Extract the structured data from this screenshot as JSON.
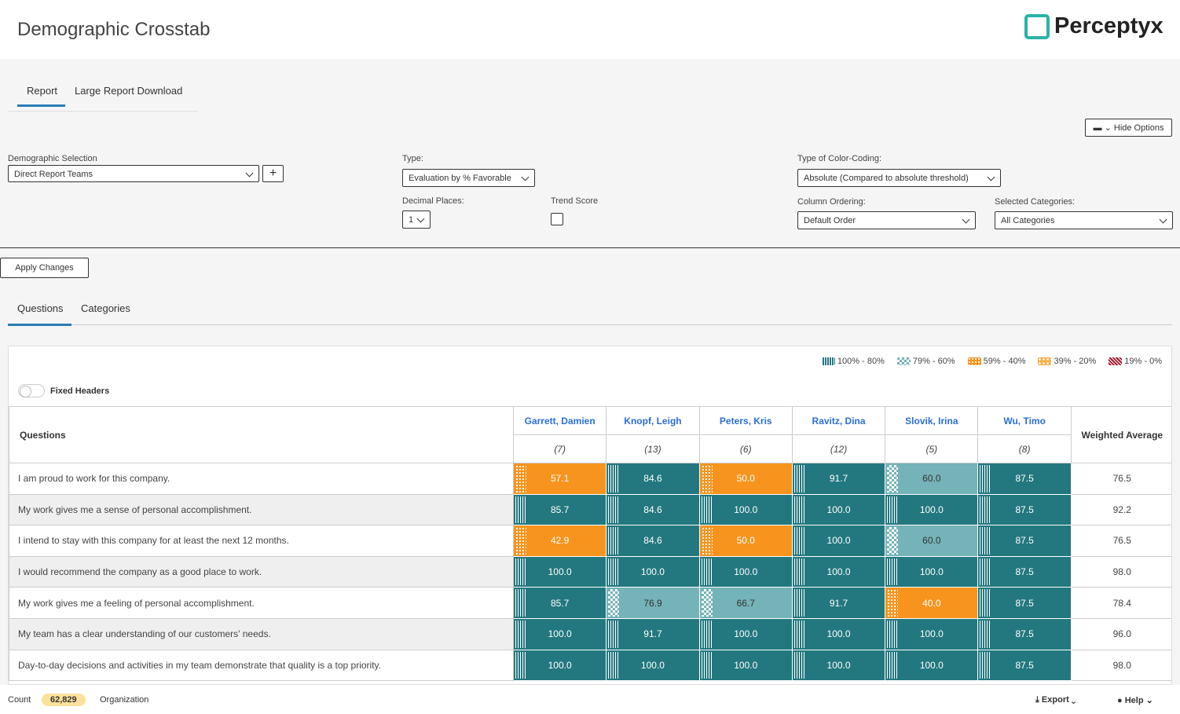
{
  "header": {
    "title": "Demographic Crosstab",
    "logo": "Perceptyx"
  },
  "tabs": [
    "Report",
    "Large Report Download"
  ],
  "hide_options": "Hide Options",
  "fields": {
    "demographic_selection": {
      "label": "Demographic Selection",
      "value": "Direct Report Teams"
    },
    "type": {
      "label": "Type:",
      "value": "Evaluation by % Favorable"
    },
    "decimal_places": {
      "label": "Decimal Places:",
      "value": "1"
    },
    "trend_score": {
      "label": "Trend Score"
    },
    "color_coding": {
      "label": "Type of Color-Coding:",
      "value": "Absolute (Compared to absolute threshold)"
    },
    "column_ordering": {
      "label": "Column Ordering:",
      "value": "Default Order"
    },
    "selected_categories": {
      "label": "Selected Categories:",
      "value": "All Categories"
    }
  },
  "apply": "Apply Changes",
  "view_tabs": [
    "Questions",
    "Categories"
  ],
  "legend": [
    {
      "label": "100% - 80%",
      "color": "#23787f"
    },
    {
      "label": "79% - 60%",
      "color": "#74b3b7"
    },
    {
      "label": "59% - 40%",
      "color": "#f7941d"
    },
    {
      "label": "39% - 20%",
      "color": "#f9b04a"
    },
    {
      "label": "19% - 0%",
      "color": "#a3182e"
    }
  ],
  "toggle": "Fixed Headers",
  "table": {
    "questions_header": "Questions",
    "weighted_header": "Weighted Average",
    "columns": [
      {
        "name": "Garrett, Damien",
        "count": "(7)"
      },
      {
        "name": "Knopf, Leigh",
        "count": "(13)"
      },
      {
        "name": "Peters, Kris",
        "count": "(6)"
      },
      {
        "name": "Ravitz, Dina",
        "count": "(12)"
      },
      {
        "name": "Slovik, Irina",
        "count": "(5)"
      },
      {
        "name": "Wu, Timo",
        "count": "(8)"
      }
    ],
    "rows": [
      {
        "question": "I am proud to work for this company.",
        "cells": [
          "57.1",
          "84.6",
          "50.0",
          "91.7",
          "60.0",
          "87.5"
        ],
        "average": "76.5"
      },
      {
        "question": "My work gives me a sense of personal accomplishment.",
        "cells": [
          "85.7",
          "84.6",
          "100.0",
          "100.0",
          "100.0",
          "87.5"
        ],
        "average": "92.2"
      },
      {
        "question": "I intend to stay with this company for at least the next 12 months.",
        "cells": [
          "42.9",
          "84.6",
          "50.0",
          "100.0",
          "60.0",
          "87.5"
        ],
        "average": "76.5"
      },
      {
        "question": "I would recommend the company as a good place to work.",
        "cells": [
          "100.0",
          "100.0",
          "100.0",
          "100.0",
          "100.0",
          "87.5"
        ],
        "average": "98.0"
      },
      {
        "question": "My work gives me a feeling of personal accomplishment.",
        "cells": [
          "85.7",
          "76.9",
          "66.7",
          "91.7",
          "40.0",
          "87.5"
        ],
        "average": "78.4"
      },
      {
        "question": "My team has a clear understanding of our customers' needs.",
        "cells": [
          "100.0",
          "91.7",
          "100.0",
          "100.0",
          "100.0",
          "87.5"
        ],
        "average": "96.0"
      },
      {
        "question": "Day-to-day decisions and activities in my team demonstrate that quality is a top priority.",
        "cells": [
          "100.0",
          "100.0",
          "100.0",
          "100.0",
          "100.0",
          "87.5"
        ],
        "average": "98.0"
      }
    ]
  },
  "footer": {
    "count_label": "Count",
    "count": "62,829",
    "scope": "Organization",
    "export": "Export",
    "help": "Help"
  }
}
